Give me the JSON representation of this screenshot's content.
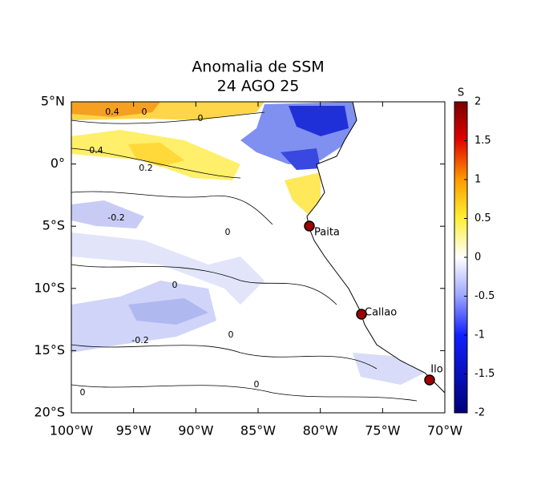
{
  "map": {
    "title": [
      "Anomalia de SSM",
      "24 AGO 25"
    ],
    "xlim": [
      -100,
      -70
    ],
    "ylim": [
      -20,
      5
    ],
    "xticks": [
      {
        "value": -100,
        "label": "100°W"
      },
      {
        "value": -95,
        "label": "95°W"
      },
      {
        "value": -90,
        "label": "90°W"
      },
      {
        "value": -85,
        "label": "85°W"
      },
      {
        "value": -80,
        "label": "80°W"
      },
      {
        "value": -75,
        "label": "75°W"
      },
      {
        "value": -70,
        "label": "70°W"
      }
    ],
    "yticks": [
      {
        "value": 5,
        "label": "5°N"
      },
      {
        "value": 0,
        "label": "0°"
      },
      {
        "value": -5,
        "label": "5°S"
      },
      {
        "value": -10,
        "label": "10°S"
      },
      {
        "value": -15,
        "label": "15°S"
      },
      {
        "value": -20,
        "label": "20°S"
      }
    ],
    "cities": [
      "Paita",
      "Callao",
      "Ilo"
    ],
    "contour_labels": [
      "0.4",
      "0",
      "0",
      "0.2",
      "0.4",
      "-0.2",
      "0",
      "0",
      "0",
      "0",
      "-0.2",
      "0"
    ],
    "colorbar": {
      "label": "S",
      "lim": [
        -2,
        2
      ],
      "ticks": [
        2,
        1.5,
        1,
        0.5,
        0,
        -0.5,
        -1,
        -1.5,
        -2
      ]
    }
  }
}
